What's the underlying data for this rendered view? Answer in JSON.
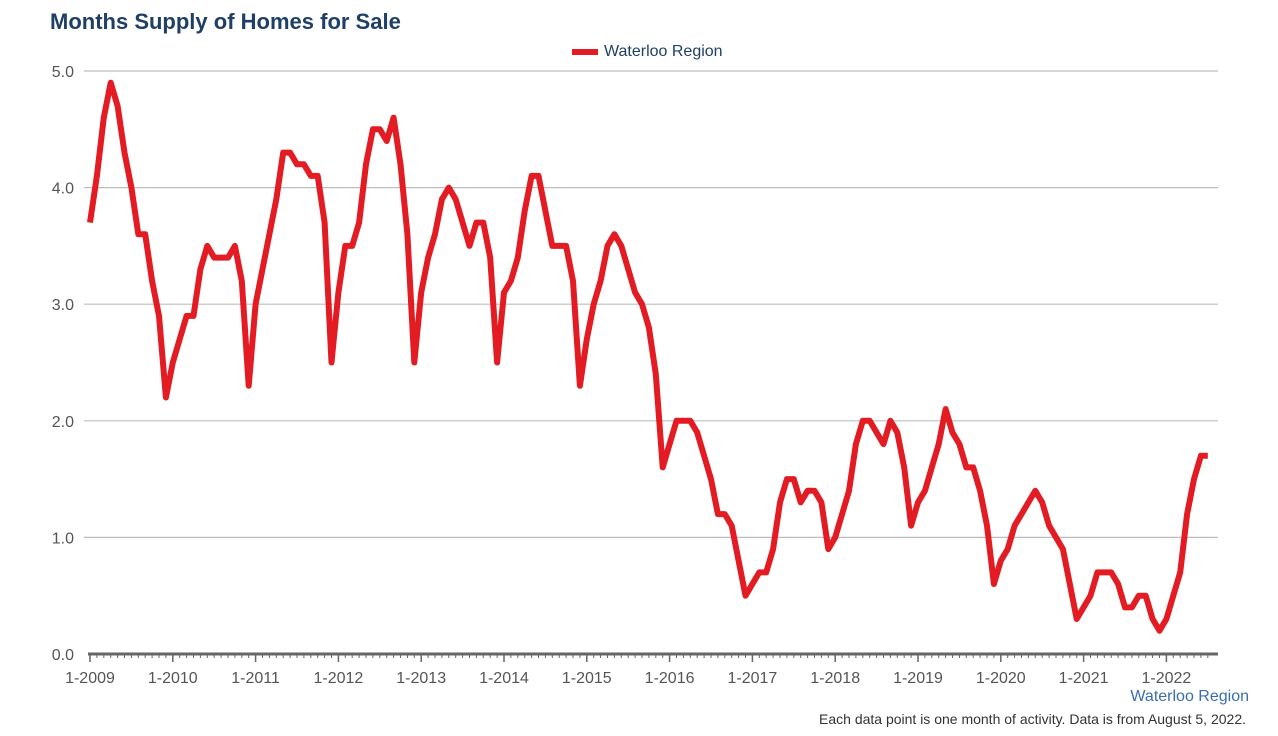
{
  "colors": {
    "line": "#e31c24",
    "grid": "#bdbdbd",
    "axis": "#666666",
    "title": "#1f3f66"
  },
  "footer": {
    "region": "Waterloo Region",
    "note": "Each data point is one month of activity. Data is from August 5, 2022."
  },
  "chart_data": {
    "type": "line",
    "title": "Months Supply of Homes for Sale",
    "xlabel": "",
    "ylabel": "",
    "ylim": [
      0,
      5
    ],
    "yticks": [
      "0.0",
      "1.0",
      "2.0",
      "3.0",
      "4.0",
      "5.0"
    ],
    "xticks": [
      "1-2009",
      "1-2010",
      "1-2011",
      "1-2012",
      "1-2013",
      "1-2014",
      "1-2015",
      "1-2016",
      "1-2017",
      "1-2018",
      "1-2019",
      "1-2020",
      "1-2021",
      "1-2022"
    ],
    "grid": true,
    "legend_position": "top-center",
    "x_start": "2009-01",
    "x_end": "2022-07",
    "series": [
      {
        "name": "Waterloo Region",
        "color": "#e31c24",
        "values": [
          3.7,
          4.1,
          4.6,
          4.9,
          4.7,
          4.3,
          4.0,
          3.6,
          3.6,
          3.2,
          2.9,
          2.2,
          2.5,
          2.7,
          2.9,
          2.9,
          3.3,
          3.5,
          3.4,
          3.4,
          3.4,
          3.5,
          3.2,
          2.3,
          3.0,
          3.3,
          3.6,
          3.9,
          4.3,
          4.3,
          4.2,
          4.2,
          4.1,
          4.1,
          3.7,
          2.5,
          3.1,
          3.5,
          3.5,
          3.7,
          4.2,
          4.5,
          4.5,
          4.4,
          4.6,
          4.2,
          3.6,
          2.5,
          3.1,
          3.4,
          3.6,
          3.9,
          4.0,
          3.9,
          3.7,
          3.5,
          3.7,
          3.7,
          3.4,
          2.5,
          3.1,
          3.2,
          3.4,
          3.8,
          4.1,
          4.1,
          3.8,
          3.5,
          3.5,
          3.5,
          3.2,
          2.3,
          2.7,
          3.0,
          3.2,
          3.5,
          3.6,
          3.5,
          3.3,
          3.1,
          3.0,
          2.8,
          2.4,
          1.6,
          1.8,
          2.0,
          2.0,
          2.0,
          1.9,
          1.7,
          1.5,
          1.2,
          1.2,
          1.1,
          0.8,
          0.5,
          0.6,
          0.7,
          0.7,
          0.9,
          1.3,
          1.5,
          1.5,
          1.3,
          1.4,
          1.4,
          1.3,
          0.9,
          1.0,
          1.2,
          1.4,
          1.8,
          2.0,
          2.0,
          1.9,
          1.8,
          2.0,
          1.9,
          1.6,
          1.1,
          1.3,
          1.4,
          1.6,
          1.8,
          2.1,
          1.9,
          1.8,
          1.6,
          1.6,
          1.4,
          1.1,
          0.6,
          0.8,
          0.9,
          1.1,
          1.2,
          1.3,
          1.4,
          1.3,
          1.1,
          1.0,
          0.9,
          0.6,
          0.3,
          0.4,
          0.5,
          0.7,
          0.7,
          0.7,
          0.6,
          0.4,
          0.4,
          0.5,
          0.5,
          0.3,
          0.2,
          0.3,
          0.5,
          0.7,
          1.2,
          1.5,
          1.7,
          1.7
        ]
      }
    ]
  }
}
